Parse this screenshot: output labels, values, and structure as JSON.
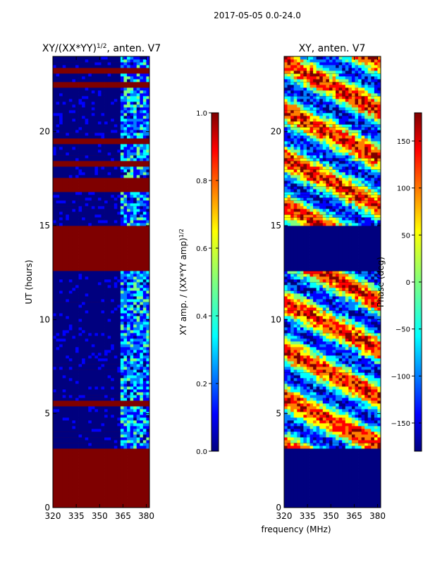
{
  "suptitle": "2017-05-05 0.0-24.0",
  "colors": {
    "jet": [
      "#00007f",
      "#0000ff",
      "#007fff",
      "#00ffff",
      "#7fff7f",
      "#ffff00",
      "#ff7f00",
      "#ff0000",
      "#7f0000"
    ],
    "low": "#00007f",
    "high": "#7f0000",
    "flag": "#000000"
  },
  "chart_data": [
    {
      "type": "heatmap",
      "title_main": "XY/(XX*YY)",
      "title_exp": "1/2",
      "title_suffix": ", anten. V7",
      "xlabel": "",
      "ylabel": "UT (hours)",
      "xlim": [
        320,
        382
      ],
      "ylim": [
        0,
        24
      ],
      "xticks": [
        320,
        335,
        350,
        365,
        380
      ],
      "yticks": [
        0,
        5,
        10,
        15,
        20
      ],
      "high_value_hours": [
        [
          0,
          3.1
        ],
        [
          5.4,
          5.7
        ],
        [
          12.6,
          15.0
        ],
        [
          16.8,
          17.5
        ],
        [
          18.2,
          18.4
        ],
        [
          19.3,
          19.6
        ],
        [
          22.4,
          22.7
        ],
        [
          23.1,
          23.4
        ]
      ],
      "band_mhz": [
        363,
        382
      ],
      "colorbar": {
        "label_main": "XY amp. / (XX*YY amp)",
        "label_exp": "1/2",
        "range": [
          0.0,
          1.0
        ],
        "ticks": [
          "0.0",
          "0.2",
          "0.4",
          "0.6",
          "0.8",
          "1.0"
        ]
      }
    },
    {
      "type": "heatmap",
      "title": "XY, anten. V7",
      "xlabel": "frequency (MHz)",
      "ylabel": "",
      "xlim": [
        320,
        382
      ],
      "ylim": [
        0,
        24
      ],
      "xticks": [
        320,
        335,
        350,
        365,
        380
      ],
      "yticks": [
        0,
        5,
        10,
        15,
        20
      ],
      "low_value_hours": [
        [
          0,
          3.1
        ],
        [
          12.6,
          15.0
        ]
      ],
      "colorbar": {
        "label": "Phase (deg)",
        "range": [
          -180,
          180
        ],
        "ticks": [
          "−150",
          "−100",
          "−50",
          "0",
          "50",
          "100",
          "150"
        ]
      }
    }
  ]
}
